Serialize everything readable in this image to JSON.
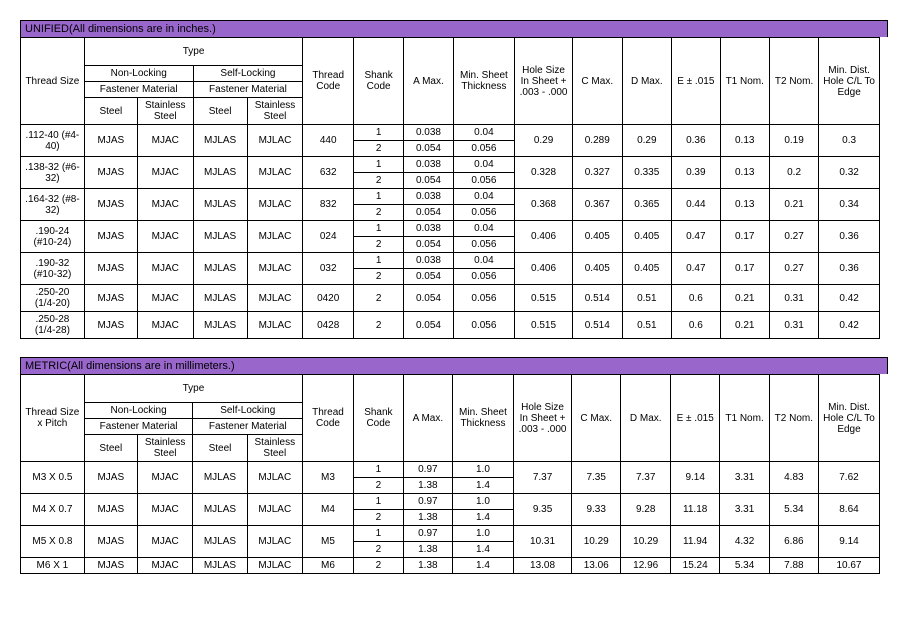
{
  "unified": {
    "title": "UNIFIED(All dimensions are in inches.)",
    "header": {
      "threadSize": "Thread Size",
      "type": "Type",
      "nonLocking": "Non-Locking",
      "selfLocking": "Self-Locking",
      "fastenerMaterial": "Fastener Material",
      "steel": "Steel",
      "stainless": "Stainless Steel",
      "threadCode": "Thread Code",
      "shankCode": "Shank Code",
      "aMax": "A Max.",
      "minSheet": "Min. Sheet Thickness",
      "holeSize": "Hole Size In Sheet + .003 - .000",
      "cMax": "C Max.",
      "dMax": "D Max.",
      "e": "E ± .015",
      "t1": "T1 Nom.",
      "t2": "T2 Nom.",
      "minDist": "Min. Dist. Hole C/L To Edge"
    },
    "rows": [
      {
        "thread": ".112-40 (#4-40)",
        "a": "MJAS",
        "b": "MJAC",
        "c": "MJLAS",
        "d": "MJLAC",
        "code": "440",
        "shanks": [
          {
            "s": "1",
            "a": "0.038",
            "m": "0.04"
          },
          {
            "s": "2",
            "a": "0.054",
            "m": "0.056"
          }
        ],
        "hole": "0.29",
        "cmax": "0.289",
        "dmax": "0.29",
        "e": "0.36",
        "t1": "0.13",
        "t2": "0.19",
        "dist": "0.3"
      },
      {
        "thread": ".138-32 (#6-32)",
        "a": "MJAS",
        "b": "MJAC",
        "c": "MJLAS",
        "d": "MJLAC",
        "code": "632",
        "shanks": [
          {
            "s": "1",
            "a": "0.038",
            "m": "0.04"
          },
          {
            "s": "2",
            "a": "0.054",
            "m": "0.056"
          }
        ],
        "hole": "0.328",
        "cmax": "0.327",
        "dmax": "0.335",
        "e": "0.39",
        "t1": "0.13",
        "t2": "0.2",
        "dist": "0.32"
      },
      {
        "thread": ".164-32 (#8-32)",
        "a": "MJAS",
        "b": "MJAC",
        "c": "MJLAS",
        "d": "MJLAC",
        "code": "832",
        "shanks": [
          {
            "s": "1",
            "a": "0.038",
            "m": "0.04"
          },
          {
            "s": "2",
            "a": "0.054",
            "m": "0.056"
          }
        ],
        "hole": "0.368",
        "cmax": "0.367",
        "dmax": "0.365",
        "e": "0.44",
        "t1": "0.13",
        "t2": "0.21",
        "dist": "0.34"
      },
      {
        "thread": ".190-24 (#10-24)",
        "a": "MJAS",
        "b": "MJAC",
        "c": "MJLAS",
        "d": "MJLAC",
        "code": "024",
        "shanks": [
          {
            "s": "1",
            "a": "0.038",
            "m": "0.04"
          },
          {
            "s": "2",
            "a": "0.054",
            "m": "0.056"
          }
        ],
        "hole": "0.406",
        "cmax": "0.405",
        "dmax": "0.405",
        "e": "0.47",
        "t1": "0.17",
        "t2": "0.27",
        "dist": "0.36"
      },
      {
        "thread": ".190-32 (#10-32)",
        "a": "MJAS",
        "b": "MJAC",
        "c": "MJLAS",
        "d": "MJLAC",
        "code": "032",
        "shanks": [
          {
            "s": "1",
            "a": "0.038",
            "m": "0.04"
          },
          {
            "s": "2",
            "a": "0.054",
            "m": "0.056"
          }
        ],
        "hole": "0.406",
        "cmax": "0.405",
        "dmax": "0.405",
        "e": "0.47",
        "t1": "0.17",
        "t2": "0.27",
        "dist": "0.36"
      },
      {
        "thread": ".250-20 (1/4-20)",
        "a": "MJAS",
        "b": "MJAC",
        "c": "MJLAS",
        "d": "MJLAC",
        "code": "0420",
        "shanks": [
          {
            "s": "2",
            "a": "0.054",
            "m": "0.056"
          }
        ],
        "hole": "0.515",
        "cmax": "0.514",
        "dmax": "0.51",
        "e": "0.6",
        "t1": "0.21",
        "t2": "0.31",
        "dist": "0.42"
      },
      {
        "thread": ".250-28 (1/4-28)",
        "a": "MJAS",
        "b": "MJAC",
        "c": "MJLAS",
        "d": "MJLAC",
        "code": "0428",
        "shanks": [
          {
            "s": "2",
            "a": "0.054",
            "m": "0.056"
          }
        ],
        "hole": "0.515",
        "cmax": "0.514",
        "dmax": "0.51",
        "e": "0.6",
        "t1": "0.21",
        "t2": "0.31",
        "dist": "0.42"
      }
    ]
  },
  "metric": {
    "title": "METRIC(All dimensions are in millimeters.)",
    "header": {
      "threadSize": "Thread Size x Pitch",
      "type": "Type",
      "nonLocking": "Non-Locking",
      "selfLocking": "Self-Locking",
      "fastenerMaterial": "Fastener Material",
      "steel": "Steel",
      "stainless": "Stainless Steel",
      "threadCode": "Thread Code",
      "shankCode": "Shank Code",
      "aMax": "A Max.",
      "minSheet": "Min. Sheet Thickness",
      "holeSize": "Hole Size In Sheet + .003 - .000",
      "cMax": "C Max.",
      "dMax": "D Max.",
      "e": "E ± .015",
      "t1": "T1 Nom.",
      "t2": "T2 Nom.",
      "minDist": "Min. Dist. Hole C/L To Edge"
    },
    "rows": [
      {
        "thread": "M3 X 0.5",
        "a": "MJAS",
        "b": "MJAC",
        "c": "MJLAS",
        "d": "MJLAC",
        "code": "M3",
        "shanks": [
          {
            "s": "1",
            "a": "0.97",
            "m": "1.0"
          },
          {
            "s": "2",
            "a": "1.38",
            "m": "1.4"
          }
        ],
        "hole": "7.37",
        "cmax": "7.35",
        "dmax": "7.37",
        "e": "9.14",
        "t1": "3.31",
        "t2": "4.83",
        "dist": "7.62"
      },
      {
        "thread": "M4 X 0.7",
        "a": "MJAS",
        "b": "MJAC",
        "c": "MJLAS",
        "d": "MJLAC",
        "code": "M4",
        "shanks": [
          {
            "s": "1",
            "a": "0.97",
            "m": "1.0"
          },
          {
            "s": "2",
            "a": "1.38",
            "m": "1.4"
          }
        ],
        "hole": "9.35",
        "cmax": "9.33",
        "dmax": "9.28",
        "e": "11.18",
        "t1": "3.31",
        "t2": "5.34",
        "dist": "8.64"
      },
      {
        "thread": "M5 X 0.8",
        "a": "MJAS",
        "b": "MJAC",
        "c": "MJLAS",
        "d": "MJLAC",
        "code": "M5",
        "shanks": [
          {
            "s": "1",
            "a": "0.97",
            "m": "1.0"
          },
          {
            "s": "2",
            "a": "1.38",
            "m": "1.4"
          }
        ],
        "hole": "10.31",
        "cmax": "10.29",
        "dmax": "10.29",
        "e": "11.94",
        "t1": "4.32",
        "t2": "6.86",
        "dist": "9.14"
      },
      {
        "thread": "M6 X 1",
        "a": "MJAS",
        "b": "MJAC",
        "c": "MJLAS",
        "d": "MJLAC",
        "code": "M6",
        "shanks": [
          {
            "s": "2",
            "a": "1.38",
            "m": "1.4"
          }
        ],
        "hole": "13.08",
        "cmax": "13.06",
        "dmax": "12.96",
        "e": "15.24",
        "t1": "5.34",
        "t2": "7.88",
        "dist": "10.67"
      }
    ]
  },
  "colWidths": {
    "threadSize": 60,
    "mat": 48,
    "code": 44,
    "shank": 44,
    "aMax": 44,
    "minSheet": 54,
    "hole": 54,
    "cmax": 44,
    "dmax": 44,
    "e": 44,
    "t1": 44,
    "t2": 44,
    "dist": 58
  }
}
